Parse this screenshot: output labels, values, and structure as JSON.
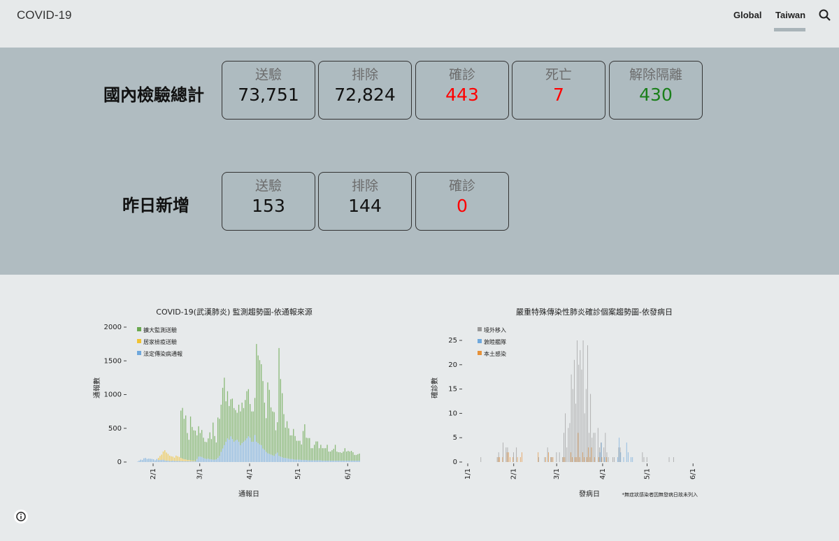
{
  "header": {
    "title": "COVID-19",
    "nav": [
      "Global",
      "Taiwan"
    ],
    "active_nav": "Taiwan"
  },
  "totals": {
    "title": "國內檢驗總計",
    "cards": [
      {
        "label": "送驗",
        "value": "73,751"
      },
      {
        "label": "排除",
        "value": "72,824"
      },
      {
        "label": "確診",
        "value": "443"
      },
      {
        "label": "死亡",
        "value": "7"
      },
      {
        "label": "解除隔離",
        "value": "430"
      }
    ]
  },
  "yesterday": {
    "title": "昨日新增",
    "cards": [
      {
        "label": "送驗",
        "value": "153"
      },
      {
        "label": "排除",
        "value": "144"
      },
      {
        "label": "確診",
        "value": "0"
      }
    ]
  },
  "colors": {
    "confirmed": "#ff0000",
    "recovered": "#1a7f1a",
    "panel": "#b0bcc1"
  },
  "chart_data": [
    {
      "type": "bar",
      "stacked": true,
      "title": "COVID-19(武漢肺炎) 監測趨勢圖-依通報來源",
      "xlabel": "通報日",
      "ylabel": "通報數",
      "ylim": [
        0,
        2000
      ],
      "yticks": [
        "0",
        "500",
        "1000",
        "1500",
        "2000"
      ],
      "xticks": [
        "2/1",
        "3/1",
        "4/1",
        "5/1",
        "6/1"
      ],
      "x_start": "1/22",
      "x_end": "6/8",
      "legend_position": "top-left",
      "series": [
        {
          "name": "擴大監測送驗",
          "color": "#6aa84f",
          "values": [
            0,
            0,
            0,
            0,
            0,
            0,
            0,
            0,
            0,
            0,
            0,
            0,
            0,
            0,
            0,
            0,
            0,
            0,
            0,
            0,
            0,
            0,
            0,
            0,
            0,
            0,
            0,
            700,
            750,
            600,
            650,
            400,
            300,
            650,
            500,
            450,
            450,
            350,
            450,
            350,
            400,
            300,
            250,
            250,
            300,
            400,
            300,
            550,
            350,
            250,
            600,
            550,
            700,
            900,
            1000,
            600,
            700,
            500,
            550,
            600,
            500,
            450,
            400,
            550,
            500,
            600,
            500,
            600,
            700,
            700,
            500,
            450,
            450,
            550,
            1450,
            1300,
            1250,
            1200,
            1000,
            700,
            500,
            1050,
            950,
            700,
            650,
            650,
            350,
            450,
            1600,
            1150,
            950,
            650,
            450,
            550,
            450,
            350,
            350,
            450,
            350,
            280,
            280,
            280,
            230,
            430,
            530,
            330,
            330,
            330,
            180,
            180,
            230,
            280,
            280,
            180,
            230,
            185,
            185,
            185,
            235,
            135,
            135,
            155,
            175,
            235,
            135,
            125,
            125,
            115,
            135,
            185,
            135,
            145,
            135,
            145,
            125,
            85,
            85,
            95,
            105
          ]
        },
        {
          "name": "居家檢疫送驗",
          "color": "#f1c232",
          "values": [
            0,
            0,
            0,
            0,
            0,
            0,
            0,
            0,
            0,
            0,
            0,
            0,
            0,
            30,
            60,
            80,
            120,
            150,
            120,
            100,
            80,
            70,
            60,
            50,
            80,
            70,
            60,
            50,
            40,
            30,
            30,
            20,
            20,
            15,
            10,
            10,
            5,
            5,
            0,
            0,
            0,
            0,
            0,
            0,
            0,
            0,
            0,
            0,
            0,
            0,
            0,
            0,
            0,
            0,
            0,
            0,
            0,
            0,
            0,
            0,
            0,
            0,
            0,
            0,
            0,
            0,
            0,
            0,
            0,
            0,
            0,
            0,
            0,
            0,
            0,
            0,
            0,
            0,
            0,
            0,
            0,
            0,
            0,
            0,
            0,
            0,
            0,
            0,
            0,
            0,
            0,
            0,
            0,
            0,
            0,
            0,
            0,
            0,
            0,
            0,
            0,
            0,
            0,
            0,
            0,
            0,
            0,
            0,
            0,
            0,
            0,
            0,
            0,
            0,
            0,
            0,
            0,
            0,
            0,
            0,
            0,
            0,
            0,
            0,
            0,
            0,
            0,
            0,
            0,
            0,
            0,
            0,
            0,
            0,
            0,
            0,
            0,
            0,
            0
          ]
        },
        {
          "name": "法定傳染病通報",
          "color": "#6fa8dc",
          "values": [
            5,
            20,
            35,
            30,
            55,
            60,
            45,
            50,
            48,
            45,
            40,
            25,
            45,
            30,
            30,
            30,
            35,
            25,
            20,
            20,
            15,
            15,
            20,
            15,
            15,
            15,
            15,
            12,
            12,
            10,
            10,
            10,
            10,
            10,
            10,
            10,
            10,
            40,
            80,
            80,
            75,
            60,
            50,
            45,
            50,
            40,
            40,
            35,
            35,
            40,
            60,
            90,
            150,
            200,
            250,
            300,
            350,
            330,
            380,
            340,
            300,
            320,
            330,
            300,
            250,
            280,
            300,
            320,
            350,
            380,
            360,
            300,
            300,
            400,
            300,
            280,
            260,
            250,
            200,
            180,
            150,
            130,
            120,
            110,
            100,
            90,
            120,
            140,
            90,
            80,
            70,
            60,
            60,
            55,
            50,
            45,
            45,
            40,
            35,
            35,
            35,
            35,
            30,
            30,
            30,
            30,
            25,
            25,
            25,
            25,
            25,
            25,
            25,
            25,
            25,
            20,
            20,
            20,
            20,
            20,
            20,
            20,
            20,
            20,
            20,
            20,
            20,
            20,
            20,
            20,
            20,
            20,
            20,
            20,
            20,
            20,
            20,
            20,
            20
          ]
        }
      ]
    },
    {
      "type": "bar",
      "grouped": true,
      "title": "嚴重特殊傳染性肺炎確診個案趨勢圖-依發病日",
      "xlabel": "發病日",
      "ylabel": "確診數",
      "note": "*無症狀感染者因無發病日故未列入",
      "ylim": [
        0,
        25
      ],
      "yticks": [
        "0",
        "5",
        "10",
        "15",
        "20",
        "25"
      ],
      "xticks": [
        "1/1",
        "2/1",
        "3/1",
        "4/1",
        "5/1",
        "6/1"
      ],
      "legend_position": "top-left",
      "series_names": [
        "境外移入",
        "敦睦艦隊",
        "本土感染"
      ],
      "series_colors": [
        "#999999",
        "#6fa8dc",
        "#e69138"
      ],
      "points": [
        [
          "1/10",
          1,
          0,
          0
        ],
        [
          "1/21",
          1,
          0,
          1
        ],
        [
          "1/22",
          2,
          0,
          1
        ],
        [
          "1/24",
          0,
          0,
          1
        ],
        [
          "1/25",
          4,
          0,
          0
        ],
        [
          "1/27",
          3,
          0,
          2
        ],
        [
          "1/28",
          3,
          0,
          2
        ],
        [
          "1/29",
          0,
          0,
          1
        ],
        [
          "1/31",
          0,
          0,
          1
        ],
        [
          "2/1",
          2,
          0,
          0
        ],
        [
          "2/3",
          3,
          0,
          1
        ],
        [
          "2/5",
          0,
          0,
          1
        ],
        [
          "2/6",
          0,
          0,
          2
        ],
        [
          "2/17",
          0,
          0,
          2
        ],
        [
          "2/18",
          1,
          0,
          0
        ],
        [
          "2/22",
          1,
          0,
          1
        ],
        [
          "2/24",
          3,
          0,
          2
        ],
        [
          "2/26",
          1,
          0,
          1
        ],
        [
          "2/27",
          1,
          0,
          1
        ],
        [
          "3/1",
          2,
          0,
          0
        ],
        [
          "3/3",
          2,
          0,
          0
        ],
        [
          "3/5",
          1,
          0,
          1
        ],
        [
          "3/6",
          6,
          0,
          1
        ],
        [
          "3/7",
          10,
          0,
          0
        ],
        [
          "3/8",
          3,
          0,
          0
        ],
        [
          "3/9",
          7,
          0,
          0
        ],
        [
          "3/10",
          8,
          0,
          2
        ],
        [
          "3/11",
          18,
          0,
          1
        ],
        [
          "3/12",
          15,
          0,
          0
        ],
        [
          "3/13",
          21,
          0,
          1
        ],
        [
          "3/14",
          12,
          0,
          1
        ],
        [
          "3/15",
          25,
          0,
          6
        ],
        [
          "3/16",
          20,
          0,
          1
        ],
        [
          "3/17",
          23,
          0,
          0
        ],
        [
          "3/18",
          19,
          0,
          2
        ],
        [
          "3/19",
          25,
          0,
          1
        ],
        [
          "3/20",
          10,
          0,
          0
        ],
        [
          "3/21",
          15,
          0,
          1
        ],
        [
          "3/22",
          24,
          0,
          3
        ],
        [
          "3/23",
          6,
          0,
          1
        ],
        [
          "3/24",
          14,
          0,
          3
        ],
        [
          "3/25",
          5,
          0,
          0
        ],
        [
          "3/26",
          6,
          0,
          1
        ],
        [
          "3/27",
          6,
          0,
          0
        ],
        [
          "3/29",
          7,
          0,
          1
        ],
        [
          "3/30",
          3,
          2,
          0
        ],
        [
          "3/31",
          4,
          4,
          1
        ],
        [
          "4/2",
          3,
          1,
          0
        ],
        [
          "4/3",
          6,
          0,
          1
        ],
        [
          "4/4",
          2,
          0,
          0
        ],
        [
          "4/5",
          1,
          0,
          0
        ],
        [
          "4/8",
          1,
          0,
          0
        ],
        [
          "4/9",
          1,
          0,
          0
        ],
        [
          "4/11",
          0,
          1,
          0
        ],
        [
          "4/12",
          3,
          5,
          0
        ],
        [
          "4/13",
          3,
          2,
          0
        ],
        [
          "4/15",
          0,
          1,
          0
        ],
        [
          "4/17",
          0,
          4,
          0
        ],
        [
          "4/18",
          0,
          2,
          0
        ],
        [
          "4/20",
          0,
          1,
          0
        ],
        [
          "4/21",
          0,
          1,
          0
        ],
        [
          "4/28",
          2,
          0,
          0
        ],
        [
          "4/29",
          1,
          0,
          0
        ],
        [
          "5/1",
          1,
          0,
          0
        ],
        [
          "5/16",
          1,
          0,
          0
        ],
        [
          "5/19",
          1,
          0,
          0
        ]
      ]
    }
  ]
}
